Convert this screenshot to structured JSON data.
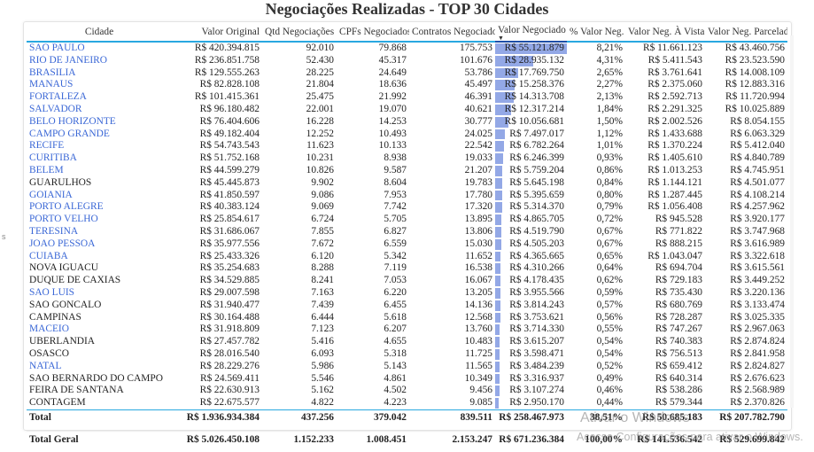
{
  "title": "Negociações Realizadas - TOP 30 Cidades",
  "left_mark": "s",
  "columns": [
    "Cidade",
    "Valor Original",
    "Qtd Negociações",
    "CPFs Negociados",
    "Contratos Negociados",
    "Valor Negociado",
    "% Valor Neg.",
    "Valor Neg. À Vista",
    "Valor Neg. Parcelado"
  ],
  "sort_indicator": "▼",
  "rows": [
    {
      "city": "SAO PAULO",
      "link": true,
      "valor_original": "R$ 420.394.815",
      "qtd": "92.010",
      "cpfs": "79.868",
      "contratos": "175.753",
      "valor_negociado": "R$ 55.121.879",
      "bar": 1.0,
      "pct": "8,21%",
      "vista": "R$ 11.661.123",
      "parcelado": "R$ 43.460.756"
    },
    {
      "city": "RIO DE JANEIRO",
      "link": true,
      "valor_original": "R$ 236.851.758",
      "qtd": "52.430",
      "cpfs": "45.317",
      "contratos": "101.676",
      "valor_negociado": "R$ 28.935.132",
      "bar": 0.525,
      "pct": "4,31%",
      "vista": "R$ 5.411.543",
      "parcelado": "R$ 23.523.590"
    },
    {
      "city": "BRASILIA",
      "link": true,
      "valor_original": "R$ 129.555.263",
      "qtd": "28.225",
      "cpfs": "24.649",
      "contratos": "53.786",
      "valor_negociado": "R$ 17.769.750",
      "bar": 0.322,
      "pct": "2,65%",
      "vista": "R$ 3.761.641",
      "parcelado": "R$ 14.008.109"
    },
    {
      "city": "MANAUS",
      "link": true,
      "valor_original": "R$ 82.828.108",
      "qtd": "21.804",
      "cpfs": "18.636",
      "contratos": "45.497",
      "valor_negociado": "R$ 15.258.376",
      "bar": 0.277,
      "pct": "2,27%",
      "vista": "R$ 2.375.060",
      "parcelado": "R$ 12.883.316"
    },
    {
      "city": "FORTALEZA",
      "link": true,
      "valor_original": "R$ 101.415.361",
      "qtd": "25.475",
      "cpfs": "21.992",
      "contratos": "46.391",
      "valor_negociado": "R$ 14.313.708",
      "bar": 0.26,
      "pct": "2,13%",
      "vista": "R$ 2.592.713",
      "parcelado": "R$ 11.720.994"
    },
    {
      "city": "SALVADOR",
      "link": true,
      "valor_original": "R$ 96.180.482",
      "qtd": "22.001",
      "cpfs": "19.070",
      "contratos": "40.621",
      "valor_negociado": "R$ 12.317.214",
      "bar": 0.223,
      "pct": "1,84%",
      "vista": "R$ 2.291.325",
      "parcelado": "R$ 10.025.889"
    },
    {
      "city": "BELO HORIZONTE",
      "link": true,
      "valor_original": "R$ 76.404.606",
      "qtd": "16.228",
      "cpfs": "14.253",
      "contratos": "30.777",
      "valor_negociado": "R$ 10.056.681",
      "bar": 0.182,
      "pct": "1,50%",
      "vista": "R$ 2.002.526",
      "parcelado": "R$ 8.054.155"
    },
    {
      "city": "CAMPO GRANDE",
      "link": true,
      "valor_original": "R$ 49.182.404",
      "qtd": "12.252",
      "cpfs": "10.493",
      "contratos": "24.025",
      "valor_negociado": "R$ 7.497.017",
      "bar": 0.136,
      "pct": "1,12%",
      "vista": "R$ 1.433.688",
      "parcelado": "R$ 6.063.329"
    },
    {
      "city": "RECIFE",
      "link": true,
      "valor_original": "R$ 54.743.543",
      "qtd": "11.623",
      "cpfs": "10.133",
      "contratos": "22.542",
      "valor_negociado": "R$ 6.782.264",
      "bar": 0.123,
      "pct": "1,01%",
      "vista": "R$ 1.370.224",
      "parcelado": "R$ 5.412.040"
    },
    {
      "city": "CURITIBA",
      "link": true,
      "valor_original": "R$ 51.752.168",
      "qtd": "10.231",
      "cpfs": "8.938",
      "contratos": "19.033",
      "valor_negociado": "R$ 6.246.399",
      "bar": 0.113,
      "pct": "0,93%",
      "vista": "R$ 1.405.610",
      "parcelado": "R$ 4.840.789"
    },
    {
      "city": "BELEM",
      "link": true,
      "valor_original": "R$ 44.599.279",
      "qtd": "10.826",
      "cpfs": "9.587",
      "contratos": "21.207",
      "valor_negociado": "R$ 5.759.204",
      "bar": 0.104,
      "pct": "0,86%",
      "vista": "R$ 1.013.253",
      "parcelado": "R$ 4.745.951"
    },
    {
      "city": "GUARULHOS",
      "link": false,
      "valor_original": "R$ 45.445.873",
      "qtd": "9.902",
      "cpfs": "8.604",
      "contratos": "19.783",
      "valor_negociado": "R$ 5.645.198",
      "bar": 0.102,
      "pct": "0,84%",
      "vista": "R$ 1.144.121",
      "parcelado": "R$ 4.501.077"
    },
    {
      "city": "GOIANIA",
      "link": true,
      "valor_original": "R$ 41.850.597",
      "qtd": "9.086",
      "cpfs": "7.953",
      "contratos": "17.780",
      "valor_negociado": "R$ 5.395.659",
      "bar": 0.098,
      "pct": "0,80%",
      "vista": "R$ 1.287.445",
      "parcelado": "R$ 4.108.214"
    },
    {
      "city": "PORTO ALEGRE",
      "link": true,
      "valor_original": "R$ 40.383.124",
      "qtd": "9.069",
      "cpfs": "7.742",
      "contratos": "17.320",
      "valor_negociado": "R$ 5.314.370",
      "bar": 0.096,
      "pct": "0,79%",
      "vista": "R$ 1.056.408",
      "parcelado": "R$ 4.257.962"
    },
    {
      "city": "PORTO VELHO",
      "link": true,
      "valor_original": "R$ 25.854.617",
      "qtd": "6.724",
      "cpfs": "5.705",
      "contratos": "13.895",
      "valor_negociado": "R$ 4.865.705",
      "bar": 0.088,
      "pct": "0,72%",
      "vista": "R$ 945.528",
      "parcelado": "R$ 3.920.177"
    },
    {
      "city": "TERESINA",
      "link": true,
      "valor_original": "R$ 31.686.067",
      "qtd": "7.855",
      "cpfs": "6.827",
      "contratos": "13.806",
      "valor_negociado": "R$ 4.519.790",
      "bar": 0.082,
      "pct": "0,67%",
      "vista": "R$ 771.822",
      "parcelado": "R$ 3.747.968"
    },
    {
      "city": "JOAO PESSOA",
      "link": true,
      "valor_original": "R$ 35.977.556",
      "qtd": "7.672",
      "cpfs": "6.559",
      "contratos": "15.030",
      "valor_negociado": "R$ 4.505.203",
      "bar": 0.082,
      "pct": "0,67%",
      "vista": "R$ 888.215",
      "parcelado": "R$ 3.616.989"
    },
    {
      "city": "CUIABA",
      "link": true,
      "valor_original": "R$ 25.433.326",
      "qtd": "6.120",
      "cpfs": "5.342",
      "contratos": "11.652",
      "valor_negociado": "R$ 4.365.665",
      "bar": 0.079,
      "pct": "0,65%",
      "vista": "R$ 1.043.047",
      "parcelado": "R$ 3.322.618"
    },
    {
      "city": "NOVA IGUACU",
      "link": false,
      "valor_original": "R$ 35.254.683",
      "qtd": "8.288",
      "cpfs": "7.119",
      "contratos": "16.538",
      "valor_negociado": "R$ 4.310.266",
      "bar": 0.078,
      "pct": "0,64%",
      "vista": "R$ 694.704",
      "parcelado": "R$ 3.615.561"
    },
    {
      "city": "DUQUE DE CAXIAS",
      "link": false,
      "valor_original": "R$ 34.529.885",
      "qtd": "8.241",
      "cpfs": "7.053",
      "contratos": "16.067",
      "valor_negociado": "R$ 4.178.435",
      "bar": 0.076,
      "pct": "0,62%",
      "vista": "R$ 729.183",
      "parcelado": "R$ 3.449.252"
    },
    {
      "city": "SAO LUIS",
      "link": true,
      "valor_original": "R$ 29.007.598",
      "qtd": "7.163",
      "cpfs": "6.220",
      "contratos": "13.205",
      "valor_negociado": "R$ 3.955.566",
      "bar": 0.072,
      "pct": "0,59%",
      "vista": "R$ 735.430",
      "parcelado": "R$ 3.220.136"
    },
    {
      "city": "SAO GONCALO",
      "link": false,
      "valor_original": "R$ 31.940.477",
      "qtd": "7.439",
      "cpfs": "6.455",
      "contratos": "14.136",
      "valor_negociado": "R$ 3.814.243",
      "bar": 0.069,
      "pct": "0,57%",
      "vista": "R$ 680.769",
      "parcelado": "R$ 3.133.474"
    },
    {
      "city": "CAMPINAS",
      "link": false,
      "valor_original": "R$ 30.164.488",
      "qtd": "6.444",
      "cpfs": "5.618",
      "contratos": "12.568",
      "valor_negociado": "R$ 3.753.621",
      "bar": 0.068,
      "pct": "0,56%",
      "vista": "R$ 728.287",
      "parcelado": "R$ 3.025.335"
    },
    {
      "city": "MACEIO",
      "link": true,
      "valor_original": "R$ 31.918.809",
      "qtd": "7.123",
      "cpfs": "6.207",
      "contratos": "13.760",
      "valor_negociado": "R$ 3.714.330",
      "bar": 0.067,
      "pct": "0,55%",
      "vista": "R$ 747.267",
      "parcelado": "R$ 2.967.063"
    },
    {
      "city": "UBERLANDIA",
      "link": false,
      "valor_original": "R$ 27.457.782",
      "qtd": "5.416",
      "cpfs": "4.655",
      "contratos": "10.483",
      "valor_negociado": "R$ 3.615.207",
      "bar": 0.066,
      "pct": "0,54%",
      "vista": "R$ 740.383",
      "parcelado": "R$ 2.874.824"
    },
    {
      "city": "OSASCO",
      "link": false,
      "valor_original": "R$ 28.016.540",
      "qtd": "6.093",
      "cpfs": "5.318",
      "contratos": "11.725",
      "valor_negociado": "R$ 3.598.471",
      "bar": 0.065,
      "pct": "0,54%",
      "vista": "R$ 756.513",
      "parcelado": "R$ 2.841.958"
    },
    {
      "city": "NATAL",
      "link": true,
      "valor_original": "R$ 28.229.276",
      "qtd": "5.986",
      "cpfs": "5.143",
      "contratos": "11.565",
      "valor_negociado": "R$ 3.484.239",
      "bar": 0.063,
      "pct": "0,52%",
      "vista": "R$ 659.412",
      "parcelado": "R$ 2.824.827"
    },
    {
      "city": "SAO BERNARDO DO CAMPO",
      "link": false,
      "valor_original": "R$ 24.569.411",
      "qtd": "5.546",
      "cpfs": "4.861",
      "contratos": "10.349",
      "valor_negociado": "R$ 3.316.937",
      "bar": 0.06,
      "pct": "0,49%",
      "vista": "R$ 640.314",
      "parcelado": "R$ 2.676.623"
    },
    {
      "city": "FEIRA DE SANTANA",
      "link": false,
      "valor_original": "R$ 22.630.913",
      "qtd": "5.162",
      "cpfs": "4.502",
      "contratos": "9.456",
      "valor_negociado": "R$ 3.107.274",
      "bar": 0.056,
      "pct": "0,46%",
      "vista": "R$ 538.286",
      "parcelado": "R$ 2.568.989"
    },
    {
      "city": "CONTAGEM",
      "link": false,
      "valor_original": "R$ 22.675.577",
      "qtd": "4.822",
      "cpfs": "4.223",
      "contratos": "9.085",
      "valor_negociado": "R$ 2.950.170",
      "bar": 0.054,
      "pct": "0,44%",
      "vista": "R$ 579.344",
      "parcelado": "R$ 2.370.826"
    }
  ],
  "total": {
    "label": "Total",
    "valor_original": "R$ 1.936.934.384",
    "qtd": "437.256",
    "cpfs": "379.042",
    "contratos": "839.511",
    "valor_negociado": "R$ 258.467.973",
    "pct": "38,51%",
    "vista": "R$ 50.685.183",
    "parcelado": "R$ 207.782.790"
  },
  "grand_total": {
    "label": "Total Geral",
    "valor_original": "R$ 5.026.450.108",
    "qtd": "1.152.233",
    "cpfs": "1.008.451",
    "contratos": "2.153.247",
    "valor_negociado": "R$ 671.236.384",
    "pct": "100,00%",
    "vista": "R$ 141.536.542",
    "parcelado": "R$ 529.699.842"
  },
  "watermark": {
    "line1": "Ativar o Windows",
    "line2": "Acesse Configurações para ativar o Windows."
  },
  "colors": {
    "link": "#3a67d6",
    "bar": "#93a8e6",
    "header_rule": "#29a8e0"
  }
}
